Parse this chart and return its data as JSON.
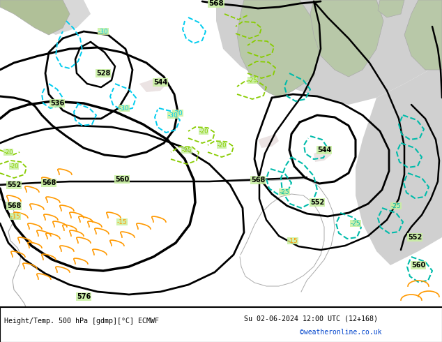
{
  "title_left": "Height/Temp. 500 hPa [gdmp][°C] ECMWF",
  "title_right": "Su 02-06-2024 12:00 UTC (12+168)",
  "credit": "©weatheronline.co.uk",
  "bg_land": "#c8f0a0",
  "bg_sea": "#d8d8d8",
  "bg_land2": "#b8e090",
  "coast_color": "#aaaaaa",
  "black": "#000000",
  "cyan": "#00ccee",
  "teal": "#00bbaa",
  "green": "#88cc00",
  "orange": "#ff9900",
  "white_bar": "#ffffff",
  "blue_text": "#0044cc",
  "figsize": [
    6.34,
    4.9
  ],
  "dpi": 100
}
